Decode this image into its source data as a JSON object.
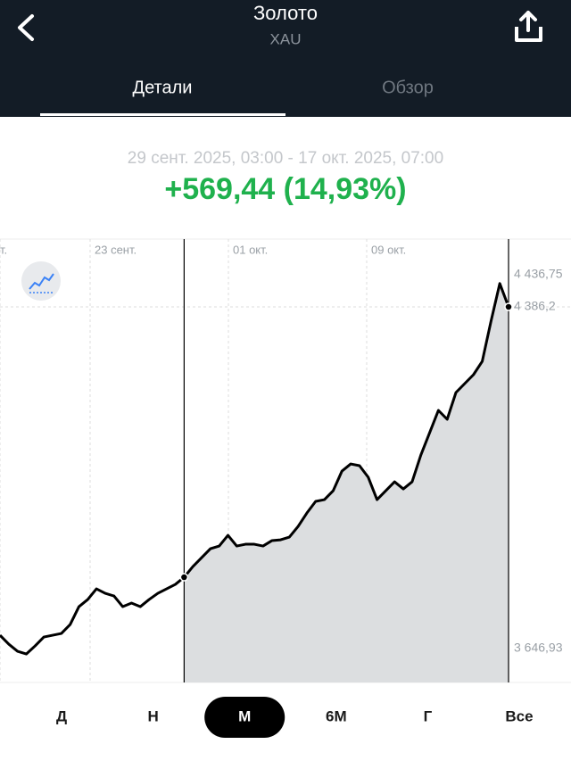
{
  "header": {
    "title": "Золото",
    "subtitle": "XAU",
    "tabs": [
      "Детали",
      "Обзор"
    ],
    "active_tab": 0
  },
  "summary": {
    "range": "29 сент. 2025, 03:00 - 17 окт. 2025, 07:00",
    "change": "+569,44 (14,93%)"
  },
  "chart_data": {
    "type": "line",
    "x_labels": [
      "т.",
      "23 сент.",
      "01 окт.",
      "09 окт."
    ],
    "series": [
      {
        "color": "#000000",
        "values": [
          3675.8,
          3656.5,
          3641.0,
          3635.2,
          3652.6,
          3671.9,
          3675.8,
          3679.6,
          3698.9,
          3737.6,
          3753.0,
          3776.2,
          3766.5,
          3760.7,
          3737.6,
          3745.3,
          3737.6,
          3753.0,
          3766.5,
          3776.2,
          3785.8,
          3801.3,
          3824.4,
          3843.7,
          3863.0,
          3868.8,
          3892.0,
          3868.8,
          3872.7,
          3872.7,
          3868.8,
          3880.4,
          3882.3,
          3888.1,
          3911.3,
          3940.3,
          3965.4,
          3969.2,
          3988.5,
          4031.0,
          4046.4,
          4042.6,
          4017.5,
          3969.2,
          3988.5,
          4007.8,
          3992.4,
          4007.8,
          4065.7,
          4114.0,
          4162.3,
          4143.0,
          4200.9,
          4220.2,
          4239.5,
          4268.4,
          4355.3,
          4436.75,
          4386.2
        ]
      }
    ],
    "area_color": "#dcdee0",
    "ylim": [
      3573.6,
      4532.9
    ],
    "yticks": [
      {
        "value": 4436.75,
        "label": "4 436,75"
      },
      {
        "value": 4386.2,
        "label": "4 386,2"
      },
      {
        "value": 3646.93,
        "label": "3 646,93"
      }
    ]
  },
  "periods": [
    "Д",
    "Н",
    "М",
    "6М",
    "Г",
    "Все"
  ],
  "active_period": 2
}
